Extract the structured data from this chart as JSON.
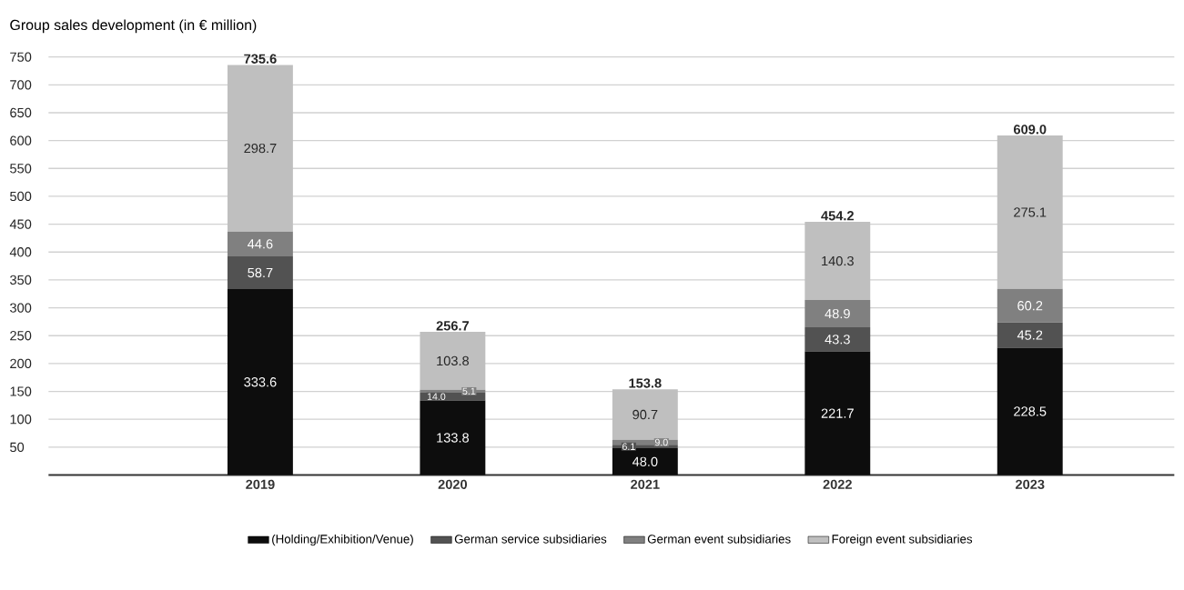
{
  "chart_data": {
    "type": "bar",
    "title": "Group sales development  (in € million)",
    "categories": [
      "2019",
      "2020",
      "2021",
      "2022",
      "2023"
    ],
    "stacked": true,
    "series": [
      {
        "name": "(Holding/Exhibition/Venue)",
        "color": "#0d0d0d",
        "values": [
          333.6,
          133.8,
          48.0,
          221.7,
          228.5
        ],
        "value_labels": [
          "333.6",
          "133.8",
          "48.0",
          "221.7",
          "228.5"
        ]
      },
      {
        "name": "German service subsidiaries",
        "color": "#525252",
        "values": [
          58.7,
          14.0,
          6.1,
          43.3,
          45.2
        ],
        "value_labels": [
          "58.7",
          "14.0",
          "6.1",
          "43.3",
          "45.2"
        ]
      },
      {
        "name": "German event subsidiaries",
        "color": "#808080",
        "values": [
          44.6,
          5.1,
          9.0,
          48.9,
          60.2
        ],
        "value_labels": [
          "44.6",
          "5.1",
          "9.0",
          "48.9",
          "60.2"
        ]
      },
      {
        "name": "Foreign event subsidiaries",
        "color": "#bfbfbf",
        "values": [
          298.7,
          103.8,
          90.7,
          140.3,
          275.1
        ],
        "value_labels": [
          "298.7",
          "103.8",
          "90.7",
          "140.3",
          "275.1"
        ]
      }
    ],
    "totals": [
      "735.6",
      "256.7",
      "153.8",
      "454.2",
      "609.0"
    ],
    "ylim": [
      0,
      750
    ],
    "yticks": [
      50,
      100,
      150,
      200,
      250,
      300,
      350,
      400,
      450,
      500,
      550,
      600,
      650,
      700,
      750
    ],
    "grid": "y",
    "legend": "bottom"
  }
}
